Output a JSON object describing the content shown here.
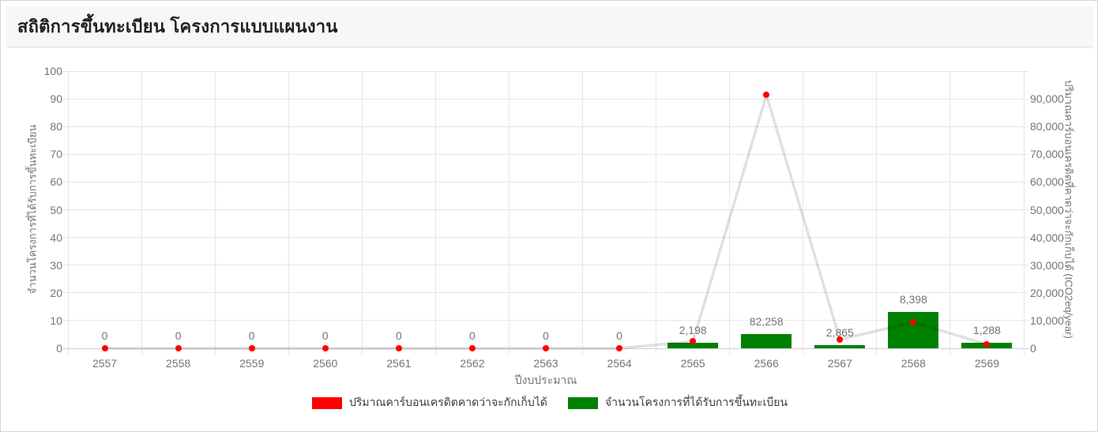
{
  "header": {
    "title": "สถิติการขึ้นทะเบียน โครงการแบบแผนงาน"
  },
  "chart_data": {
    "type": "bar",
    "subtype": "combo bar + line, dual y-axis",
    "categories": [
      "2557",
      "2558",
      "2559",
      "2560",
      "2561",
      "2562",
      "2563",
      "2564",
      "2565",
      "2566",
      "2567",
      "2568",
      "2569"
    ],
    "series": [
      {
        "name": "ปริมาณคาร์บอนเครดิตคาดว่าจะกักเก็บได้",
        "type": "line",
        "axis": "right",
        "color": "#ff0000",
        "line_color": "rgba(0,0,0,0.12)",
        "values": [
          0,
          0,
          0,
          0,
          0,
          0,
          0,
          0,
          2198,
          82258,
          2865,
          8398,
          1288
        ],
        "labels": [
          "0",
          "0",
          "0",
          "0",
          "0",
          "0",
          "0",
          "0",
          "2,198",
          "82,258",
          "2,865",
          "8,398",
          "1,288"
        ]
      },
      {
        "name": "จำนวนโครงการที่ได้รับการขึ้นทะเบียน",
        "type": "bar",
        "axis": "left",
        "color": "#008000",
        "values": [
          0,
          0,
          0,
          0,
          0,
          0,
          0,
          0,
          2,
          5,
          1,
          13,
          2
        ]
      }
    ],
    "xlabel": "ปีงบประมาณ",
    "ylabel_left": "จำนวนโครงการที่ได้รับการขึ้นทะเบียน",
    "ylabel_right": "ปริมาณคาร์บอนเครดิตที่คาดว่าจะกักเก็บได้ (tCO2eq/year)",
    "ylim_left": [
      0,
      100
    ],
    "ylim_right": [
      0,
      90000
    ],
    "yticks_left": [
      "0",
      "10",
      "20",
      "30",
      "40",
      "50",
      "60",
      "70",
      "80",
      "90",
      "100"
    ],
    "yticks_right": [
      "0",
      "10,000",
      "20,000",
      "30,000",
      "40,000",
      "50,000",
      "60,000",
      "70,000",
      "80,000",
      "90,000"
    ],
    "grid": true,
    "legend_position": "bottom"
  }
}
